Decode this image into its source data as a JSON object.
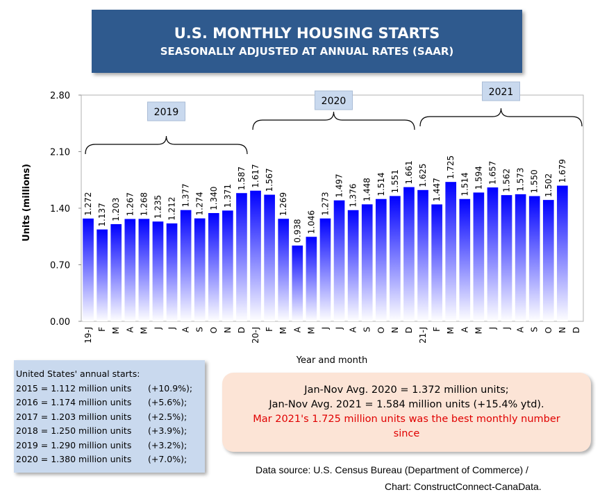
{
  "title": "U.S. MONTHLY HOUSING STARTS",
  "subtitle": "SEASONALLY ADJUSTED AT ANNUAL RATES (SAAR)",
  "chart_data": {
    "type": "bar",
    "ylabel": "Units (millions)",
    "xlabel": "Year and month",
    "ylim": [
      0,
      2.8
    ],
    "yticks": [
      "0.00",
      "0.70",
      "1.40",
      "2.10",
      "2.80"
    ],
    "categories": [
      "19-J",
      "F",
      "M",
      "A",
      "M",
      "J",
      "J",
      "A",
      "S",
      "O",
      "N",
      "D",
      "20-J",
      "F",
      "M",
      "A",
      "M",
      "J",
      "J",
      "A",
      "S",
      "O",
      "N",
      "D",
      "21-J",
      "F",
      "M",
      "A",
      "M",
      "J",
      "J",
      "A",
      "S",
      "O",
      "N",
      "D"
    ],
    "values": [
      1.272,
      1.137,
      1.203,
      1.267,
      1.268,
      1.235,
      1.212,
      1.377,
      1.274,
      1.34,
      1.371,
      1.587,
      1.617,
      1.567,
      1.269,
      0.938,
      1.046,
      1.273,
      1.497,
      1.376,
      1.448,
      1.514,
      1.551,
      1.661,
      1.625,
      1.447,
      1.725,
      1.514,
      1.594,
      1.657,
      1.562,
      1.573,
      1.55,
      1.502,
      1.679,
      null
    ],
    "labels": [
      "1.272",
      "1.137",
      "1.203",
      "1.267",
      "1.268",
      "1.235",
      "1.212",
      "1.377",
      "1.274",
      "1.340",
      "1.371",
      "1.587",
      "1.617",
      "1.567",
      "1.269",
      "0.938",
      "1.046",
      "1.273",
      "1.497",
      "1.376",
      "1.448",
      "1.514",
      "1.551",
      "1.661",
      "1.625",
      "1.447",
      "1.725",
      "1.514",
      "1.594",
      "1.657",
      "1.562",
      "1.573",
      "1.550",
      "1.502",
      "1.679",
      ""
    ],
    "year_groups": [
      {
        "label": "2019",
        "start": 0,
        "end": 11
      },
      {
        "label": "2020",
        "start": 12,
        "end": 23
      },
      {
        "label": "2021",
        "start": 24,
        "end": 35
      }
    ],
    "bar_color_top": "#0000ff",
    "bar_color_bottom": "#ffffff"
  },
  "annual_summary": {
    "header": "United States' annual starts:",
    "rows": [
      {
        "label": "2015 = 1.112 million units",
        "change": "(+10.9%);"
      },
      {
        "label": "2016 = 1.174 million units",
        "change": "(+5.6%);"
      },
      {
        "label": "2017 = 1.203 million units",
        "change": "(+2.5%);"
      },
      {
        "label": "2018 = 1.250 million units",
        "change": "(+3.9%);"
      },
      {
        "label": "2019 = 1.290 million units",
        "change": "(+3.2%);"
      },
      {
        "label": "2020 = 1.380 million units",
        "change": "(+7.0%);"
      }
    ]
  },
  "averages": {
    "line1": "Jan-Nov Avg. 2020 = 1.372 million units;",
    "line2": "Jan-Nov Avg. 2021 = 1.584 million units (+15.4% ytd).",
    "highlight": "Mar 2021's 1.725 million units was the best monthly number since"
  },
  "source": {
    "line1": "Data source: U.S. Census Bureau (Department of Commerce) /",
    "line2": "Chart: ConstructConnect-CanaData."
  }
}
